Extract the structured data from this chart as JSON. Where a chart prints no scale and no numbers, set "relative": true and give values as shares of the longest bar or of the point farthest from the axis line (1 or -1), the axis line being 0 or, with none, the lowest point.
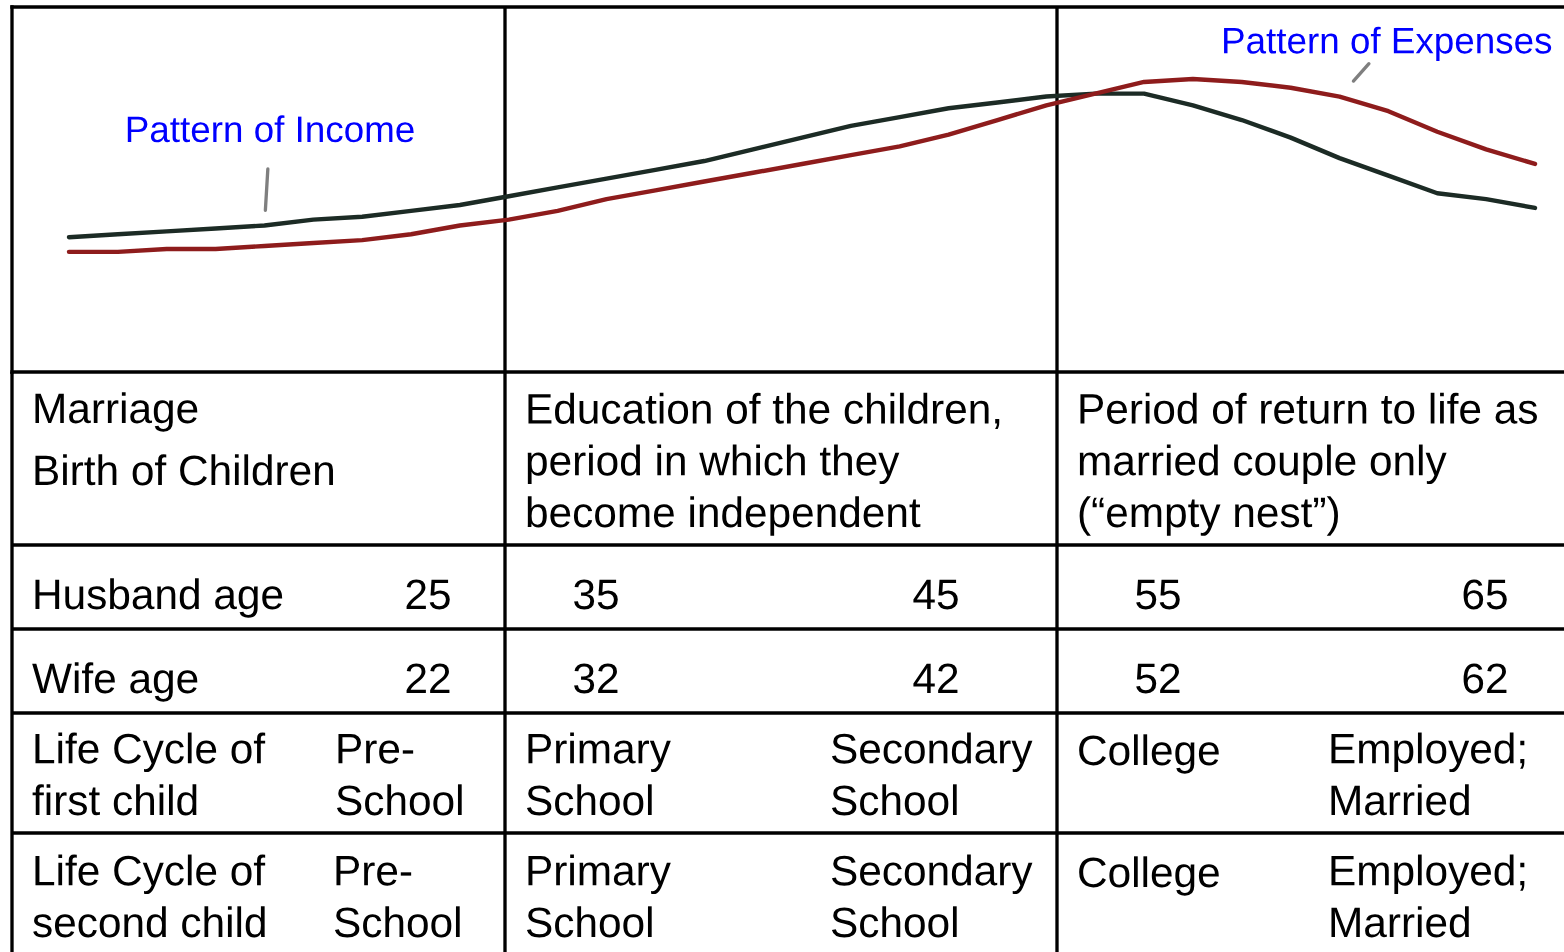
{
  "chart_data": [
    {
      "type": "line",
      "relative": true,
      "line_style": "solid",
      "categories": [
        null,
        null,
        null,
        null,
        null,
        null,
        null,
        null,
        null,
        null,
        null,
        null,
        null,
        null,
        null,
        null,
        null,
        null,
        null,
        null,
        null,
        null,
        null,
        null,
        null,
        null,
        null,
        null,
        null,
        null,
        null
      ],
      "series": [
        {
          "name": "Pattern of Income",
          "color": "#1c2b25",
          "values": [
            0.46,
            0.47,
            0.48,
            0.49,
            0.5,
            0.52,
            0.53,
            0.55,
            0.57,
            0.6,
            0.63,
            0.66,
            0.69,
            0.72,
            0.76,
            0.8,
            0.84,
            0.87,
            0.9,
            0.92,
            0.94,
            0.95,
            0.95,
            0.91,
            0.86,
            0.8,
            0.73,
            0.67,
            0.61,
            0.59,
            0.56
          ]
        },
        {
          "name": "Pattern of Expenses",
          "color": "#8e1c1c",
          "values": [
            0.41,
            0.41,
            0.42,
            0.42,
            0.43,
            0.44,
            0.45,
            0.47,
            0.5,
            0.52,
            0.55,
            0.59,
            0.62,
            0.65,
            0.68,
            0.71,
            0.74,
            0.77,
            0.81,
            0.86,
            0.91,
            0.95,
            0.99,
            1.0,
            0.99,
            0.97,
            0.94,
            0.89,
            0.82,
            0.76,
            0.71
          ]
        }
      ]
    },
    {
      "type": "other",
      "annotations": [
        "Marriage",
        "Birth of Children",
        "Education of the children,\nperiod in which they\nbecome independent",
        "Period of return to life as\nmarried couple only\n(“empty nest”)",
        "Husband age",
        "25",
        "35",
        "45",
        "55",
        "65",
        "Wife age",
        "22",
        "32",
        "42",
        "52",
        "62",
        "Life Cycle of\nfirst child",
        "Pre-\nSchool",
        "Primary\nSchool",
        "Secondary\nSchool",
        "College",
        "Employed;\nMarried",
        "Life Cycle of\nsecond child",
        "Pre-\nSchool",
        "Primary\nSchool",
        "Secondary\nSchool",
        "College",
        "Employed;\nMarried"
      ]
    }
  ]
}
